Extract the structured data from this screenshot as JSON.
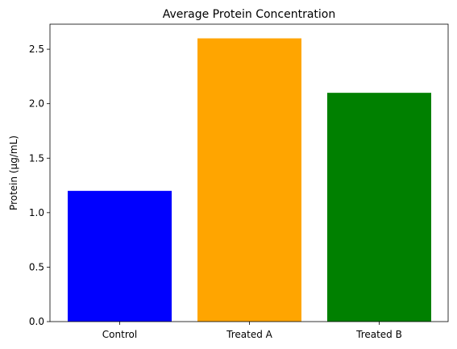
{
  "chart_data": {
    "type": "bar",
    "title": "Average Protein Concentration",
    "xlabel": "",
    "ylabel": "Protein (µg/mL)",
    "categories": [
      "Control",
      "Treated A",
      "Treated B"
    ],
    "values": [
      1.2,
      2.6,
      2.1
    ],
    "colors": [
      "#0000ff",
      "#ffa500",
      "#008000"
    ],
    "ylim": [
      0,
      2.73
    ],
    "yticks": [
      0.0,
      0.5,
      1.0,
      1.5,
      2.0,
      2.5
    ],
    "ytick_labels": [
      "0.0",
      "0.5",
      "1.0",
      "1.5",
      "2.0",
      "2.5"
    ],
    "grid": false,
    "legend": "none"
  }
}
